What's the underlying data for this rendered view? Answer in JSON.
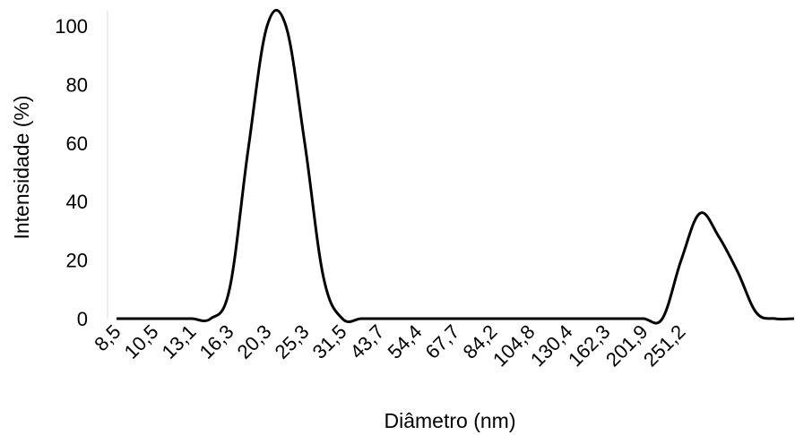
{
  "chart_data": {
    "type": "line",
    "title": "",
    "xlabel": "Diâmetro (nm)",
    "ylabel": "Intensidade (%)",
    "ylim": [
      0,
      100
    ],
    "yticks": [
      "0",
      "20",
      "40",
      "60",
      "80",
      "100"
    ],
    "grid": false,
    "legend": "none",
    "line_color": "#000000",
    "x_tick_labels": [
      "8,5",
      "10,5",
      "13,1",
      "16,3",
      "20,3",
      "25,3",
      "31,5",
      "43,7",
      "54,4",
      "67,7",
      "84,2",
      "104,8",
      "130,4",
      "162,3",
      "201,9",
      "251,2"
    ],
    "series": [
      {
        "values": [
          0,
          0,
          0,
          0,
          0,
          0,
          10,
          58,
          100,
          100,
          60,
          14,
          0,
          0,
          0,
          0,
          0,
          0,
          0,
          0,
          0,
          0,
          0,
          0,
          0,
          0,
          0,
          0,
          0,
          0,
          20,
          36,
          28,
          16,
          2,
          0,
          0
        ]
      }
    ]
  }
}
